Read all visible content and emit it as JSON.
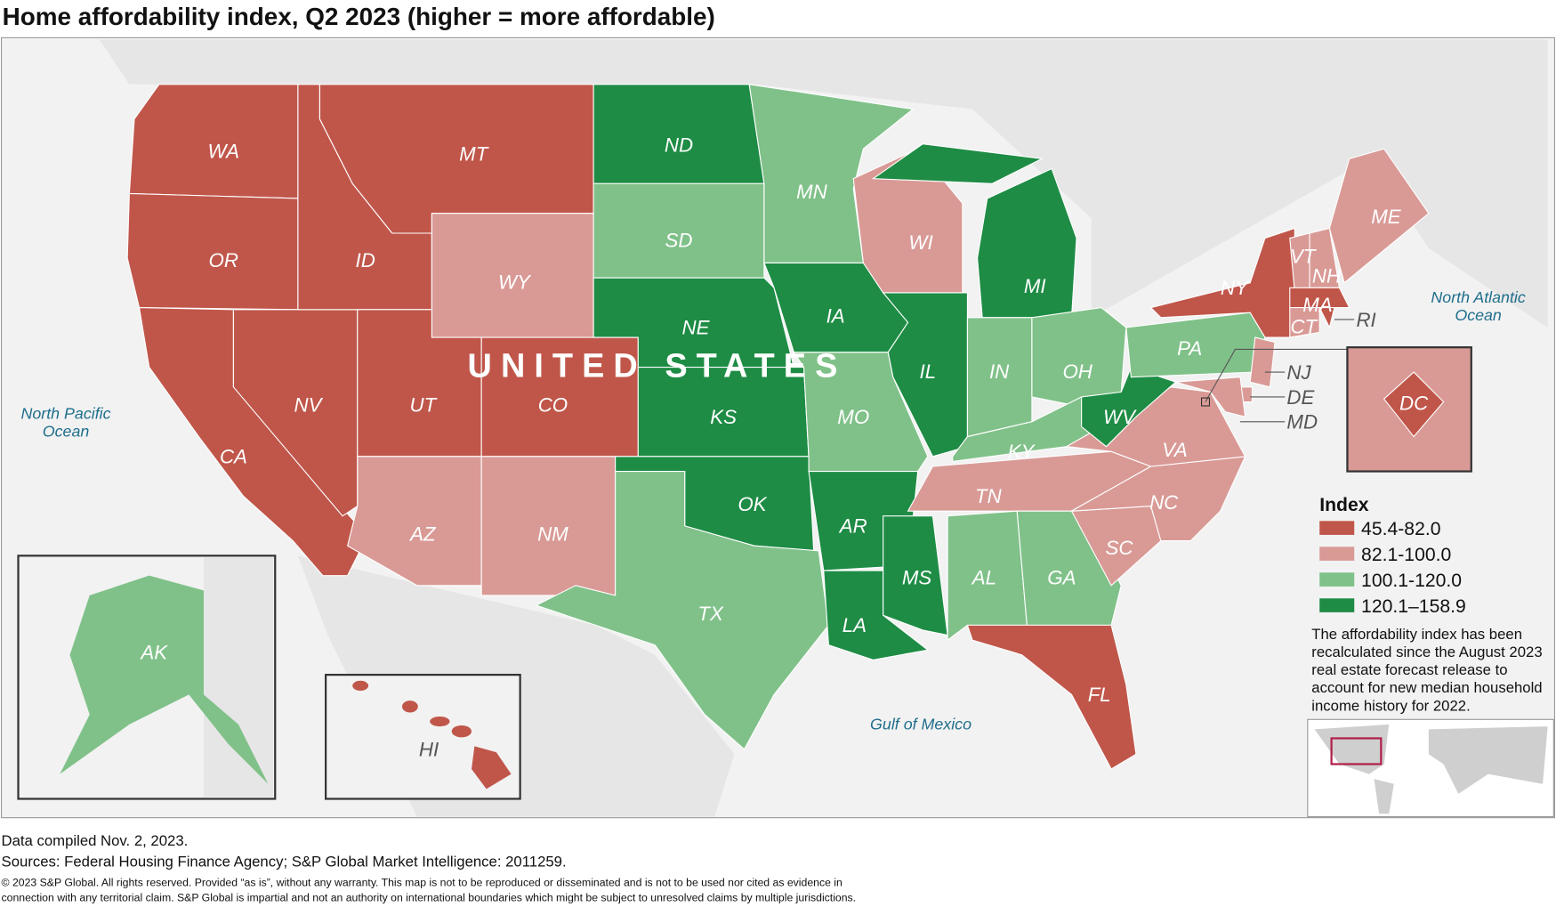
{
  "title": "Home affordability index, Q2 2023 (higher = more affordable)",
  "country_label": "UNITED STATES",
  "oceans": {
    "pacific": [
      "North Pacific",
      "Ocean"
    ],
    "atlantic": [
      "North Atlantic",
      "Ocean"
    ],
    "gulf": "Gulf of Mexico"
  },
  "legend": {
    "title": "Index",
    "classes": [
      {
        "label": "45.4-82.0",
        "color": "#c0564a"
      },
      {
        "label": "82.1-100.0",
        "color": "#d99a96"
      },
      {
        "label": "100.1-120.0",
        "color": "#80c189"
      },
      {
        "label": "120.1–158.9",
        "color": "#1e8c45"
      }
    ],
    "note": [
      "The affordability index has been",
      "recalculated since the August 2023",
      "real estate forecast release to",
      "account for new median household",
      "income history for 2022."
    ]
  },
  "states": {
    "WA": 0,
    "OR": 0,
    "CA": 0,
    "NV": 0,
    "ID": 0,
    "MT": 0,
    "UT": 0,
    "CO": 0,
    "NY": 0,
    "MA": 0,
    "RI": 0,
    "FL": 0,
    "HI": 0,
    "DC": 0,
    "WY": 1,
    "AZ": 1,
    "NM": 1,
    "WI": 1,
    "ME": 1,
    "VT": 1,
    "NH": 1,
    "CT": 1,
    "VA": 1,
    "NC": 1,
    "SC": 1,
    "TN": 1,
    "NJ": 1,
    "DE": 1,
    "MD": 1,
    "MN": 2,
    "SD": 2,
    "MO": 2,
    "IN": 2,
    "OH": 2,
    "KY": 2,
    "PA": 2,
    "TX": 2,
    "AL": 2,
    "GA": 2,
    "AK": 2,
    "ND": 3,
    "NE": 3,
    "KS": 3,
    "IA": 3,
    "IL": 3,
    "MI": 3,
    "WV": 3,
    "OK": 3,
    "AR": 3,
    "LA": 3,
    "MS": 3
  },
  "footer": {
    "compiled": "Data compiled Nov. 2, 2023.",
    "sources": "Sources: Federal Housing Finance Agency; S&P Global Market Intelligence: 2011259.",
    "copyright": [
      "© 2023 S&P Global. All rights reserved. Provided “as is”, without any warranty. This map is not to be reproduced or disseminated and is not to be used nor cited as evidence in",
      "connection with any territorial claim. S&P Global is impartial and not an authority on international boundaries which might be subject to unresolved claims by multiple jurisdictions."
    ]
  }
}
